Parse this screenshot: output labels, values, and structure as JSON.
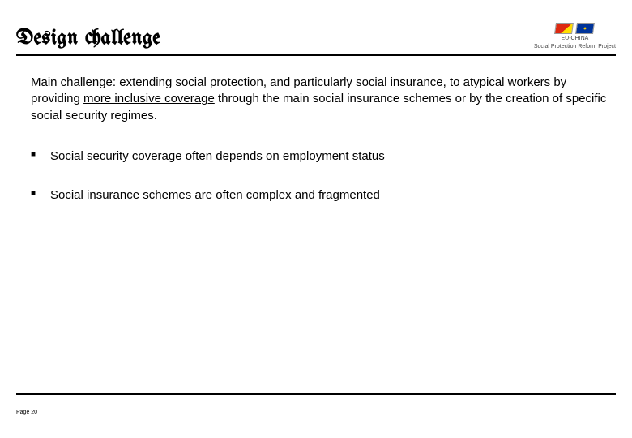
{
  "header": {
    "title": "Design challenge",
    "logo": {
      "line1": "EU-CHINA",
      "line2": "Social Protection Reform Project"
    }
  },
  "content": {
    "main_plain1": "Main challenge: extending social protection, and particularly social insurance, to atypical workers by providing ",
    "main_underlined": "more inclusive coverage",
    "main_plain2": " through the main social insurance schemes or by the creation of specific social security regimes.",
    "bullets": [
      "Social security coverage often depends on employment status",
      "Social insurance schemes are often complex and fragmented"
    ]
  },
  "footer": {
    "page": "Page 20"
  },
  "style": {
    "title_font_size_pt": 26,
    "body_font_size_pt": 15,
    "bullet_marker": "■",
    "divider_color": "#000000",
    "background_color": "#ffffff",
    "text_color": "#000000"
  }
}
